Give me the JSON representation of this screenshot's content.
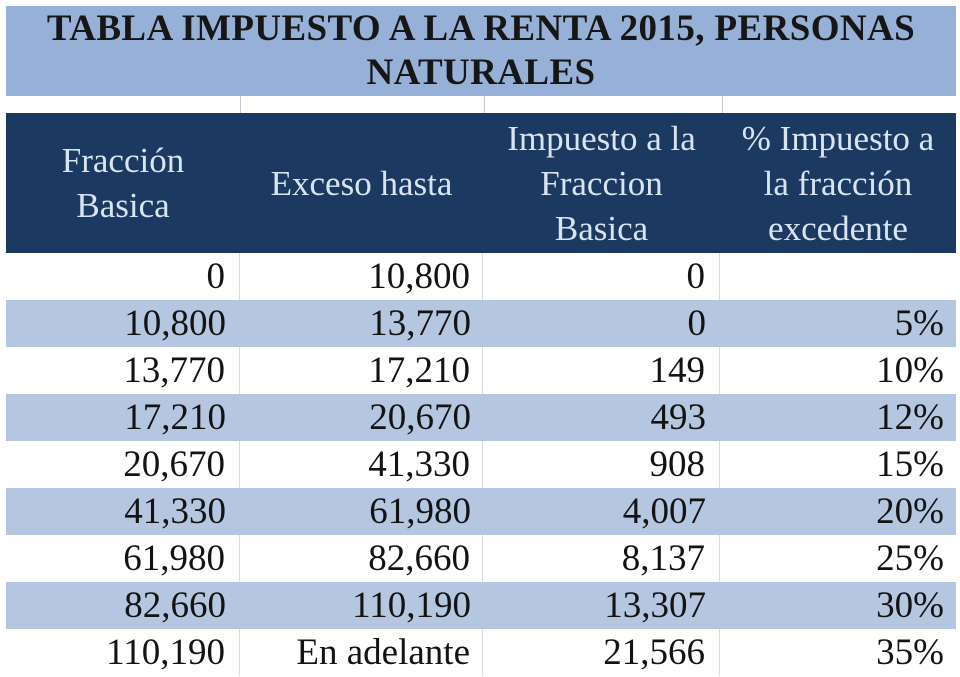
{
  "colors": {
    "title_bg": "#97B0D8",
    "header_bg": "#1C3A61",
    "stripe_bg": "#B5C6E1",
    "header_text": "#D9E4F1",
    "body_text": "#131313",
    "divider": "#C5CBD5",
    "divider_light": "#D8DDE4",
    "page_bg": "#FFFFFF"
  },
  "title": {
    "line1": "TABLA IMPUESTO A LA RENTA 2015, PERSONAS",
    "line2": "NATURALES"
  },
  "table": {
    "headers": [
      {
        "label": "Fracción\nBasica"
      },
      {
        "label": "Exceso hasta"
      },
      {
        "label": "Impuesto a la\nFraccion\nBasica"
      },
      {
        "label": "% Impuesto a\nla fracción\nexcedente"
      }
    ],
    "rows": [
      {
        "fraccion_basica": "0",
        "exceso_hasta": "10,800",
        "impuesto_fraccion_basica": "0",
        "pct_excedente": ""
      },
      {
        "fraccion_basica": "10,800",
        "exceso_hasta": "13,770",
        "impuesto_fraccion_basica": "0",
        "pct_excedente": "5%"
      },
      {
        "fraccion_basica": "13,770",
        "exceso_hasta": "17,210",
        "impuesto_fraccion_basica": "149",
        "pct_excedente": "10%"
      },
      {
        "fraccion_basica": "17,210",
        "exceso_hasta": "20,670",
        "impuesto_fraccion_basica": "493",
        "pct_excedente": "12%"
      },
      {
        "fraccion_basica": "20,670",
        "exceso_hasta": "41,330",
        "impuesto_fraccion_basica": "908",
        "pct_excedente": "15%"
      },
      {
        "fraccion_basica": "41,330",
        "exceso_hasta": "61,980",
        "impuesto_fraccion_basica": "4,007",
        "pct_excedente": "20%"
      },
      {
        "fraccion_basica": "61,980",
        "exceso_hasta": "82,660",
        "impuesto_fraccion_basica": "8,137",
        "pct_excedente": "25%"
      },
      {
        "fraccion_basica": "82,660",
        "exceso_hasta": "110,190",
        "impuesto_fraccion_basica": "13,307",
        "pct_excedente": "30%"
      },
      {
        "fraccion_basica": "110,190",
        "exceso_hasta": "En adelante",
        "impuesto_fraccion_basica": "21,566",
        "pct_excedente": "35%"
      }
    ]
  }
}
